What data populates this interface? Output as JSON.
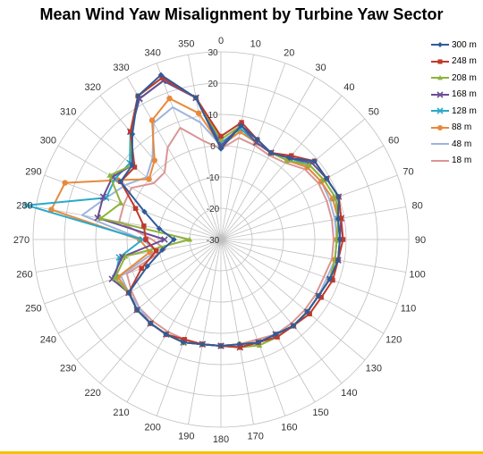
{
  "chart_data": {
    "type": "radar",
    "title": "Mean Wind Yaw Misalignment by Turbine Yaw Sector",
    "angular_axis": {
      "ticks": [
        0,
        10,
        20,
        30,
        40,
        50,
        60,
        70,
        80,
        90,
        100,
        110,
        120,
        130,
        140,
        150,
        160,
        170,
        180,
        190,
        200,
        210,
        220,
        230,
        240,
        250,
        260,
        270,
        280,
        290,
        300,
        310,
        320,
        330,
        340,
        350
      ]
    },
    "radial_axis": {
      "min": -30,
      "max": 30,
      "ticks": [
        30,
        20,
        10,
        0,
        -10,
        -20,
        -30
      ]
    },
    "legend_position": "right",
    "series": [
      {
        "name": "300 m",
        "color": "#2e5c9a",
        "marker": "diamond",
        "values": [
          -1,
          7,
          4,
          2,
          4,
          9,
          9,
          10,
          8,
          8,
          8,
          7,
          6,
          6,
          6,
          5,
          5,
          4,
          4,
          4,
          5,
          5,
          5,
          5,
          4,
          -5,
          -11,
          -15,
          -10,
          -4,
          7,
          7,
          14,
          23,
          26,
          16
        ]
      },
      {
        "name": "248 m",
        "color": "#c0392b",
        "marker": "square",
        "values": [
          3,
          8,
          4,
          2,
          5,
          9,
          9,
          10,
          9,
          9,
          8,
          8,
          7,
          7,
          6,
          6,
          5,
          5,
          4,
          4,
          4,
          5,
          5,
          5,
          4,
          -3,
          -9,
          -6,
          -5,
          -1,
          7,
          6,
          15,
          23,
          25,
          16
        ]
      },
      {
        "name": "208 m",
        "color": "#8db33a",
        "marker": "triangle",
        "values": [
          2,
          7,
          4,
          2,
          3,
          7,
          8,
          9,
          8,
          7,
          7,
          7,
          6,
          6,
          6,
          6,
          6,
          5,
          4,
          4,
          5,
          5,
          5,
          5,
          4,
          6,
          1,
          -20,
          9,
          4,
          11,
          7,
          15,
          23,
          25,
          16
        ]
      },
      {
        "name": "168 m",
        "color": "#6a4c93",
        "marker": "x",
        "values": [
          0,
          7,
          3,
          2,
          4,
          8,
          9,
          10,
          9,
          8,
          8,
          7,
          6,
          6,
          6,
          5,
          5,
          5,
          4,
          4,
          5,
          5,
          5,
          5,
          4,
          7,
          2,
          -12,
          10,
          10,
          10,
          7,
          15,
          22,
          24,
          16
        ]
      },
      {
        "name": "128 m",
        "color": "#2aa9c9",
        "marker": "x",
        "values": [
          1,
          6,
          3,
          2,
          4,
          7,
          8,
          9,
          8,
          8,
          8,
          7,
          6,
          6,
          6,
          5,
          5,
          5,
          4,
          4,
          5,
          5,
          5,
          5,
          4,
          6,
          3,
          -5,
          33,
          9,
          9,
          8,
          15,
          22,
          24,
          16
        ]
      },
      {
        "name": "88 m",
        "color": "#e8893a",
        "marker": "circle",
        "values": [
          0,
          5,
          3,
          2,
          3,
          6,
          7,
          8,
          8,
          7,
          7,
          7,
          6,
          6,
          6,
          5,
          5,
          4,
          4,
          4,
          5,
          5,
          5,
          5,
          4,
          5,
          -7,
          -4,
          25,
          23,
          8,
          0,
          3,
          14,
          18,
          11
        ]
      },
      {
        "name": "48 m",
        "color": "#9eb4dc",
        "marker": "none",
        "values": [
          0,
          5,
          3,
          2,
          3,
          6,
          7,
          7,
          7,
          7,
          7,
          6,
          6,
          6,
          6,
          5,
          5,
          4,
          4,
          4,
          5,
          5,
          5,
          4,
          4,
          4,
          -9,
          -5,
          15,
          9,
          5,
          1,
          4,
          13,
          15,
          8
        ]
      },
      {
        "name": "18 m",
        "color": "#d99694",
        "marker": "none",
        "values": [
          -1,
          3,
          2,
          1,
          2,
          5,
          6,
          6,
          6,
          6,
          6,
          5,
          5,
          5,
          5,
          5,
          4,
          4,
          4,
          4,
          4,
          4,
          4,
          4,
          3,
          2,
          -12,
          -8,
          3,
          3,
          3,
          -2,
          -2,
          4,
          8,
          2
        ]
      }
    ]
  }
}
